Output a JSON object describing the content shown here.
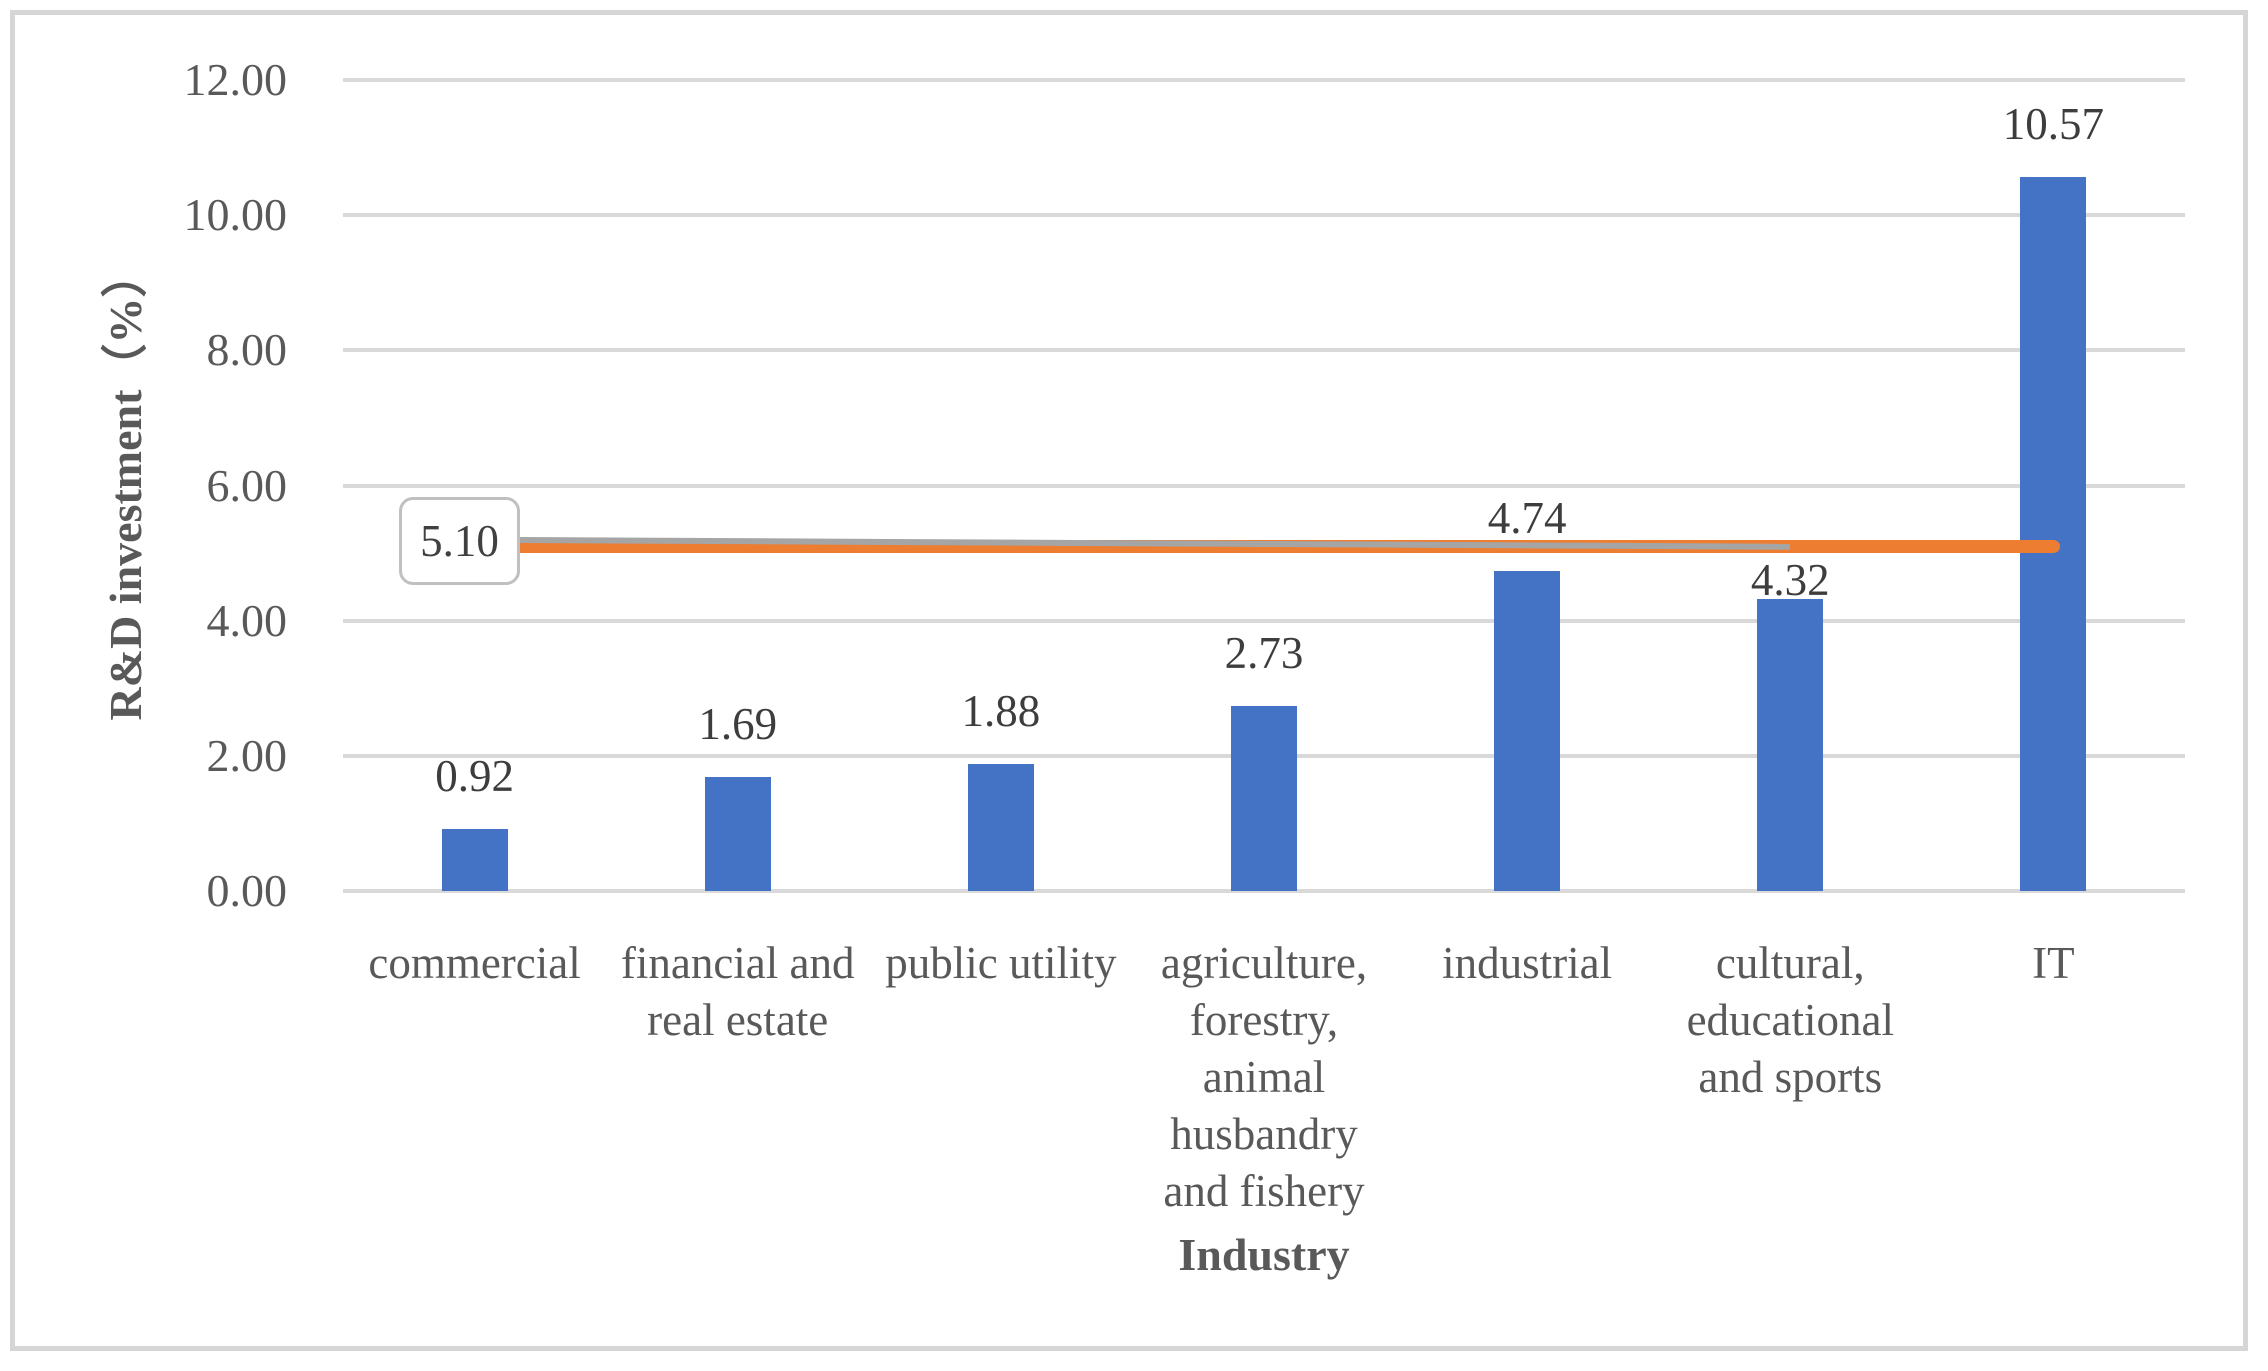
{
  "chart_data": {
    "type": "bar",
    "title": "",
    "xlabel": "Industry",
    "ylabel": "R&D investment（%）",
    "categories": [
      "commercial",
      "financial and\nreal estate",
      "public utility",
      "agriculture,\nforestry,\nanimal\nhusbandry\nand fishery",
      "industrial",
      "cultural,\neducational\nand sports",
      "IT"
    ],
    "values": [
      0.92,
      1.69,
      1.88,
      2.73,
      4.74,
      4.32,
      10.57
    ],
    "value_labels": [
      "0.92",
      "1.69",
      "1.88",
      "2.73",
      "4.74",
      "4.32",
      "10.57"
    ],
    "ylim": [
      0,
      12
    ],
    "ytick_step": 2,
    "ytick_labels": [
      "0.00",
      "2.00",
      "4.00",
      "6.00",
      "8.00",
      "10.00",
      "12.00"
    ],
    "grid": true,
    "legend": "none",
    "bar_color": "#4472c4",
    "average_line": {
      "label": "5.10",
      "value": 5.1,
      "color": "#ed7d31",
      "ends_at_category": "IT"
    },
    "trend_line": {
      "start_value": 5.2,
      "end_value": 5.1,
      "color": "#a5a5a5",
      "ends_at_category": "cultural,\neducational\nand sports"
    },
    "colors": {
      "gridline": "#d9d9d9",
      "tick_label": "#595959",
      "value_label": "#3d3d3d",
      "axis_title": "#595959",
      "frame_border": "#d6d6d6",
      "annotation_border": "#c0c0c0"
    }
  }
}
